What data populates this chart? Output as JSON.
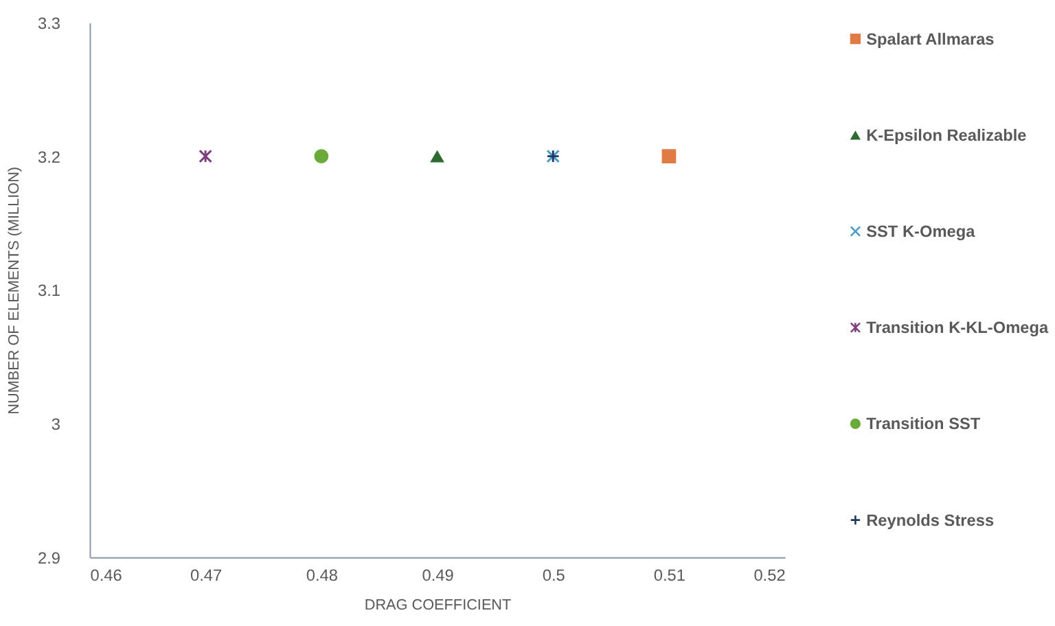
{
  "chart_data": {
    "type": "scatter",
    "xlabel": "DRAG COEFFICIENT",
    "ylabel": "NUMBER OF ELEMENTS (MILLION)",
    "xlim": [
      0.46,
      0.52
    ],
    "xticks": [
      0.46,
      0.47,
      0.48,
      0.49,
      0.5,
      0.51,
      0.52
    ],
    "ylim": [
      2.9,
      3.3
    ],
    "yticks": [
      2.9,
      3,
      3.1,
      3.2,
      3.3
    ],
    "grid": false,
    "legend": "right",
    "series": [
      {
        "name": "Spalart Allmaras",
        "color": "#e07b45",
        "marker": "square",
        "x": [
          0.51
        ],
        "values": [
          3.2
        ]
      },
      {
        "name": "K-Epsilon Realizable",
        "color": "#2e6b30",
        "marker": "triangle",
        "x": [
          0.49
        ],
        "values": [
          3.2
        ]
      },
      {
        "name": "SST K-Omega",
        "color": "#4a9cc9",
        "marker": "x",
        "x": [
          0.5
        ],
        "values": [
          3.2
        ]
      },
      {
        "name": "Transition K-KL-Omega",
        "color": "#7e3f7e",
        "x": [
          0.47
        ],
        "values": [
          3.2
        ]
      },
      {
        "name": "Transition SST",
        "color": "#6aaa3a",
        "marker": "circle",
        "x": [
          0.48
        ],
        "values": [
          3.2
        ]
      },
      {
        "name": "Reynolds Stress",
        "color": "#203864",
        "marker": "cross",
        "x": [
          0.5
        ],
        "values": [
          3.2
        ]
      }
    ]
  }
}
